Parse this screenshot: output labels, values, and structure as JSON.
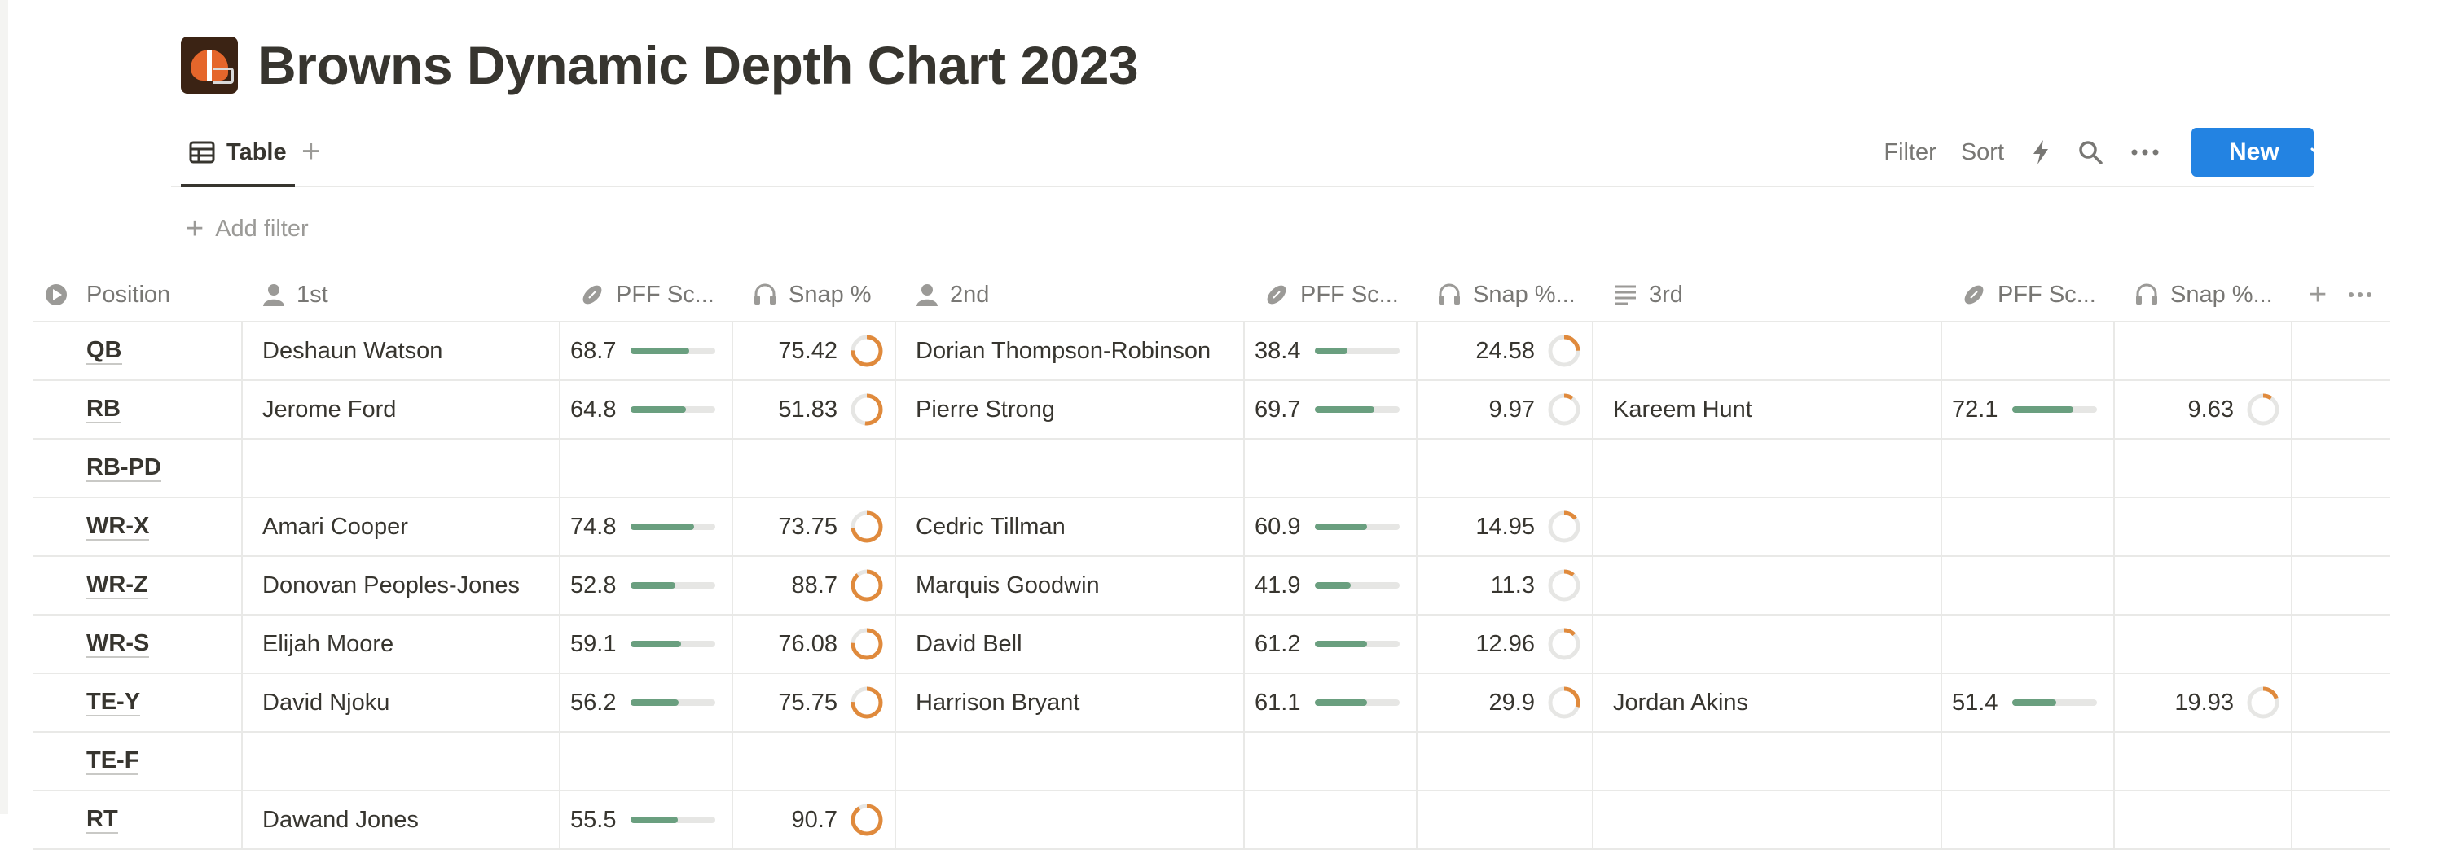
{
  "page": {
    "title": "Browns Dynamic Depth Chart 2023",
    "logo_icon": "browns-helmet-logo"
  },
  "view_tabs": {
    "active_label": "Table",
    "add_icon": "plus-icon"
  },
  "toolbar": {
    "filter_label": "Filter",
    "sort_label": "Sort",
    "new_label": "New",
    "accent": "#2383e2"
  },
  "filter_bar": {
    "add_filter_label": "Add filter"
  },
  "columns": [
    {
      "key": "position",
      "label": "Position",
      "icon": "status-icon"
    },
    {
      "key": "first",
      "label": "1st",
      "icon": "person-icon"
    },
    {
      "key": "pff1",
      "label": "PFF Sc...",
      "icon": "football-icon"
    },
    {
      "key": "snap1",
      "label": "Snap %",
      "icon": "headset-icon"
    },
    {
      "key": "second",
      "label": "2nd",
      "icon": "person-icon"
    },
    {
      "key": "pff2",
      "label": "PFF Sc...",
      "icon": "football-icon"
    },
    {
      "key": "snap2",
      "label": "Snap %...",
      "icon": "headset-icon"
    },
    {
      "key": "third",
      "label": "3rd",
      "icon": "text-icon"
    },
    {
      "key": "pff3",
      "label": "PFF Sc...",
      "icon": "football-icon"
    },
    {
      "key": "snap3",
      "label": "Snap %...",
      "icon": "headset-icon"
    }
  ],
  "colors": {
    "pff_bar": "#6a9f7f",
    "snap_ring": "#e08a3c",
    "track": "#e6e6e4"
  },
  "rows": [
    {
      "position": "QB",
      "first": "Deshaun Watson",
      "pff1": "68.7",
      "snap1": "75.42",
      "second": "Dorian Thompson-Robinson",
      "pff2": "38.4",
      "snap2": "24.58",
      "third": "",
      "pff3": "",
      "snap3": ""
    },
    {
      "position": "RB",
      "first": "Jerome Ford",
      "pff1": "64.8",
      "snap1": "51.83",
      "second": "Pierre Strong",
      "pff2": "69.7",
      "snap2": "9.97",
      "third": "Kareem Hunt",
      "pff3": "72.1",
      "snap3": "9.63"
    },
    {
      "position": "RB-PD",
      "first": "",
      "pff1": "",
      "snap1": "",
      "second": "",
      "pff2": "",
      "snap2": "",
      "third": "",
      "pff3": "",
      "snap3": ""
    },
    {
      "position": "WR-X",
      "first": "Amari Cooper",
      "pff1": "74.8",
      "snap1": "73.75",
      "second": "Cedric Tillman",
      "pff2": "60.9",
      "snap2": "14.95",
      "third": "",
      "pff3": "",
      "snap3": ""
    },
    {
      "position": "WR-Z",
      "first": "Donovan Peoples-Jones",
      "pff1": "52.8",
      "snap1": "88.7",
      "second": "Marquis Goodwin",
      "pff2": "41.9",
      "snap2": "11.3",
      "third": "",
      "pff3": "",
      "snap3": ""
    },
    {
      "position": "WR-S",
      "first": "Elijah Moore",
      "pff1": "59.1",
      "snap1": "76.08",
      "second": "David Bell",
      "pff2": "61.2",
      "snap2": "12.96",
      "third": "",
      "pff3": "",
      "snap3": ""
    },
    {
      "position": "TE-Y",
      "first": "David Njoku",
      "pff1": "56.2",
      "snap1": "75.75",
      "second": "Harrison Bryant",
      "pff2": "61.1",
      "snap2": "29.9",
      "third": "Jordan Akins",
      "pff3": "51.4",
      "snap3": "19.93"
    },
    {
      "position": "TE-F",
      "first": "",
      "pff1": "",
      "snap1": "",
      "second": "",
      "pff2": "",
      "snap2": "",
      "third": "",
      "pff3": "",
      "snap3": ""
    },
    {
      "position": "RT",
      "first": "Dawand Jones",
      "pff1": "55.5",
      "snap1": "90.7",
      "second": "",
      "pff2": "",
      "snap2": "",
      "third": "",
      "pff3": "",
      "snap3": ""
    }
  ]
}
